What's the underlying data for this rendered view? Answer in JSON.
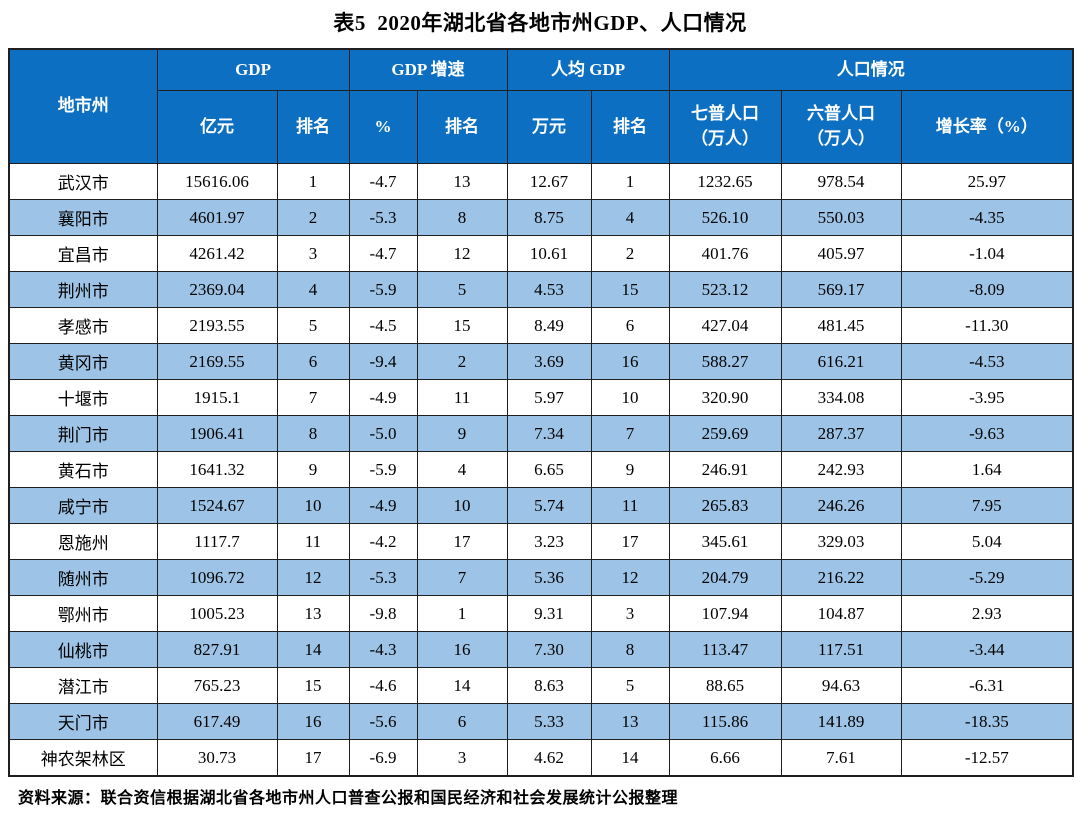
{
  "page": {
    "title": "表5  2020年湖北省各地市州GDP、人口情况",
    "source_note": "资料来源：联合资信根据湖北省各地市州人口普查公报和国民经济和社会发展统计公报整理"
  },
  "colors": {
    "header_bg": "#0d6fc1",
    "stripe_bg": "#9dc3e6",
    "row_bg": "#ffffff",
    "border": "#1f1f1f",
    "header_text": "#ffffff"
  },
  "table": {
    "header": {
      "region": "地市州",
      "groups": [
        {
          "label": "GDP"
        },
        {
          "label": "GDP 增速"
        },
        {
          "label": "人均 GDP"
        },
        {
          "label": "人口情况"
        }
      ],
      "sub": [
        "亿元",
        "排名",
        "%",
        "排名",
        "万元",
        "排名",
        "七普人口\n（万人）",
        "六普人口\n（万人）",
        "增长率（%）"
      ]
    },
    "columns": [
      "region",
      "gdp_yi",
      "gdp_rank",
      "growth_pct",
      "growth_rank",
      "percapita_wan",
      "percapita_rank",
      "pop7",
      "pop6",
      "pop_growth_pct"
    ],
    "rows": [
      [
        "武汉市",
        "15616.06",
        "1",
        "-4.7",
        "13",
        "12.67",
        "1",
        "1232.65",
        "978.54",
        "25.97"
      ],
      [
        "襄阳市",
        "4601.97",
        "2",
        "-5.3",
        "8",
        "8.75",
        "4",
        "526.10",
        "550.03",
        "-4.35"
      ],
      [
        "宜昌市",
        "4261.42",
        "3",
        "-4.7",
        "12",
        "10.61",
        "2",
        "401.76",
        "405.97",
        "-1.04"
      ],
      [
        "荆州市",
        "2369.04",
        "4",
        "-5.9",
        "5",
        "4.53",
        "15",
        "523.12",
        "569.17",
        "-8.09"
      ],
      [
        "孝感市",
        "2193.55",
        "5",
        "-4.5",
        "15",
        "8.49",
        "6",
        "427.04",
        "481.45",
        "-11.30"
      ],
      [
        "黄冈市",
        "2169.55",
        "6",
        "-9.4",
        "2",
        "3.69",
        "16",
        "588.27",
        "616.21",
        "-4.53"
      ],
      [
        "十堰市",
        "1915.1",
        "7",
        "-4.9",
        "11",
        "5.97",
        "10",
        "320.90",
        "334.08",
        "-3.95"
      ],
      [
        "荆门市",
        "1906.41",
        "8",
        "-5.0",
        "9",
        "7.34",
        "7",
        "259.69",
        "287.37",
        "-9.63"
      ],
      [
        "黄石市",
        "1641.32",
        "9",
        "-5.9",
        "4",
        "6.65",
        "9",
        "246.91",
        "242.93",
        "1.64"
      ],
      [
        "咸宁市",
        "1524.67",
        "10",
        "-4.9",
        "10",
        "5.74",
        "11",
        "265.83",
        "246.26",
        "7.95"
      ],
      [
        "恩施州",
        "1117.7",
        "11",
        "-4.2",
        "17",
        "3.23",
        "17",
        "345.61",
        "329.03",
        "5.04"
      ],
      [
        "随州市",
        "1096.72",
        "12",
        "-5.3",
        "7",
        "5.36",
        "12",
        "204.79",
        "216.22",
        "-5.29"
      ],
      [
        "鄂州市",
        "1005.23",
        "13",
        "-9.8",
        "1",
        "9.31",
        "3",
        "107.94",
        "104.87",
        "2.93"
      ],
      [
        "仙桃市",
        "827.91",
        "14",
        "-4.3",
        "16",
        "7.30",
        "8",
        "113.47",
        "117.51",
        "-3.44"
      ],
      [
        "潜江市",
        "765.23",
        "15",
        "-4.6",
        "14",
        "8.63",
        "5",
        "88.65",
        "94.63",
        "-6.31"
      ],
      [
        "天门市",
        "617.49",
        "16",
        "-5.6",
        "6",
        "5.33",
        "13",
        "115.86",
        "141.89",
        "-18.35"
      ],
      [
        "神农架林区",
        "30.73",
        "17",
        "-6.9",
        "3",
        "4.62",
        "14",
        "6.66",
        "7.61",
        "-12.57"
      ]
    ]
  }
}
